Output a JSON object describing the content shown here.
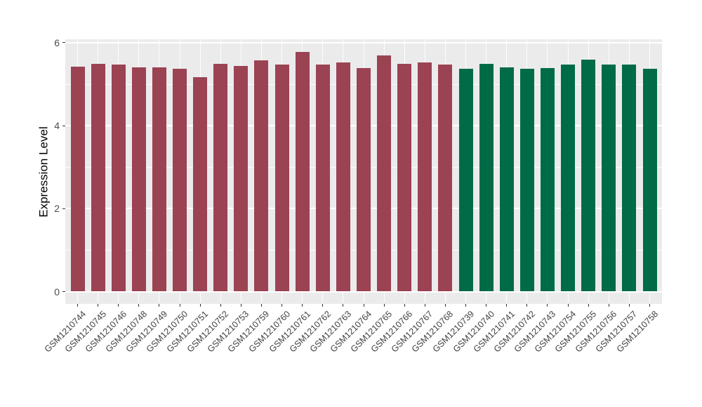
{
  "figure": {
    "background_color": "#FFFFFF",
    "panel_background_color": "#EBEBEB",
    "grid_color": "#FFFFFF",
    "tick_mark_color": "#333333",
    "axis_text_color": "#4D4D4D",
    "axis_title_color": "#000000"
  },
  "chart_data": {
    "type": "bar",
    "title": "",
    "xlabel": "",
    "ylabel": "Expression Level",
    "ylim": [
      -0.3,
      6.1
    ],
    "yticks": [
      0,
      2,
      4,
      6
    ],
    "yticks_minor": [
      1,
      3,
      5
    ],
    "grid": true,
    "legend_position": "none",
    "x_label_angle": 45,
    "palette": [
      "#9B4353",
      "#006B47"
    ],
    "categories": [
      "GSM1210744",
      "GSM1210745",
      "GSM1210746",
      "GSM1210748",
      "GSM1210749",
      "GSM1210750",
      "GSM1210751",
      "GSM1210752",
      "GSM1210753",
      "GSM1210759",
      "GSM1210760",
      "GSM1210761",
      "GSM1210762",
      "GSM1210763",
      "GSM1210764",
      "GSM1210765",
      "GSM1210766",
      "GSM1210767",
      "GSM1210768",
      "GSM1210739",
      "GSM1210740",
      "GSM1210741",
      "GSM1210742",
      "GSM1210743",
      "GSM1210754",
      "GSM1210755",
      "GSM1210756",
      "GSM1210757",
      "GSM1210758"
    ],
    "values": [
      5.43,
      5.49,
      5.48,
      5.41,
      5.41,
      5.38,
      5.17,
      5.49,
      5.44,
      5.57,
      5.47,
      5.78,
      5.48,
      5.53,
      5.39,
      5.7,
      5.49,
      5.53,
      5.48,
      5.38,
      5.49,
      5.4,
      5.37,
      5.39,
      5.47,
      5.6,
      5.47,
      5.47,
      5.38
    ],
    "bar_color_index": [
      0,
      0,
      0,
      0,
      0,
      0,
      0,
      0,
      0,
      0,
      0,
      0,
      0,
      0,
      0,
      0,
      0,
      0,
      0,
      1,
      1,
      1,
      1,
      1,
      1,
      1,
      1,
      1,
      1
    ]
  }
}
